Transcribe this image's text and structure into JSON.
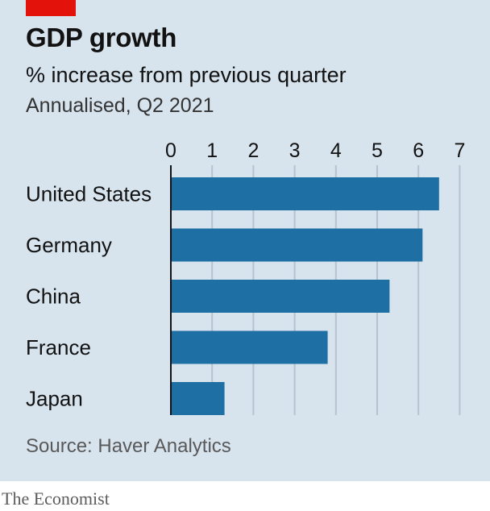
{
  "header": {
    "title": "GDP growth",
    "subtitle": "% increase from previous quarter",
    "note": "Annualised, Q2 2021"
  },
  "footer": {
    "source": "Source: Haver Analytics",
    "brand": "The Economist"
  },
  "colors": {
    "background": "#d7e4ee",
    "bar": "#1e6fa3",
    "accent": "#e3120b",
    "grid": "#b5c3cf"
  },
  "chart_data": {
    "type": "bar",
    "orientation": "horizontal",
    "categories": [
      "United States",
      "Germany",
      "China",
      "France",
      "Japan"
    ],
    "values": [
      6.5,
      6.1,
      5.3,
      3.8,
      1.3
    ],
    "xticks": [
      "0",
      "1",
      "2",
      "3",
      "4",
      "5",
      "6",
      "7"
    ],
    "xlim": [
      0,
      7
    ],
    "grid": true,
    "xaxis_position": "top"
  }
}
